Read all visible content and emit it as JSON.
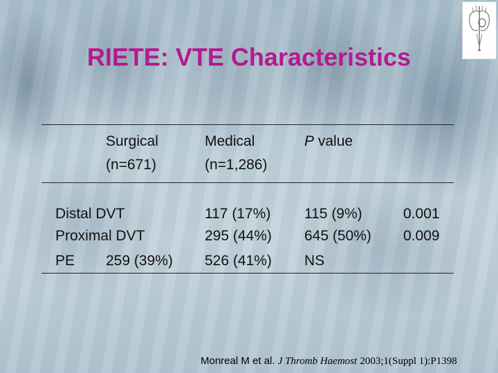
{
  "slide": {
    "title": "RIETE: VTE Characteristics"
  },
  "table": {
    "headers": {
      "surgical_line1": "Surgical",
      "surgical_line2": "(n=671)",
      "medical_line1": "Medical",
      "medical_line2": "(n=1,286)",
      "pvalue": "P value"
    },
    "rows": [
      {
        "label": "Distal DVT",
        "surgical": "117 (17%)",
        "medical": "115 (9%)",
        "pvalue": "0.001"
      },
      {
        "label": "Proximal DVT",
        "surgical": "295 (44%)",
        "medical": "645 (50%)",
        "pvalue": "0.009"
      },
      {
        "label": "PE",
        "surgical": "259 (39%)",
        "medical": "526 (41%)",
        "pvalue": "NS"
      }
    ]
  },
  "citation": {
    "authors": "Monreal M et al.",
    "journal": "J Thromb Haemost",
    "ref": "2003;1(Suppl 1):P1398"
  },
  "logo": {
    "icon": "heart-lungs-icon"
  }
}
